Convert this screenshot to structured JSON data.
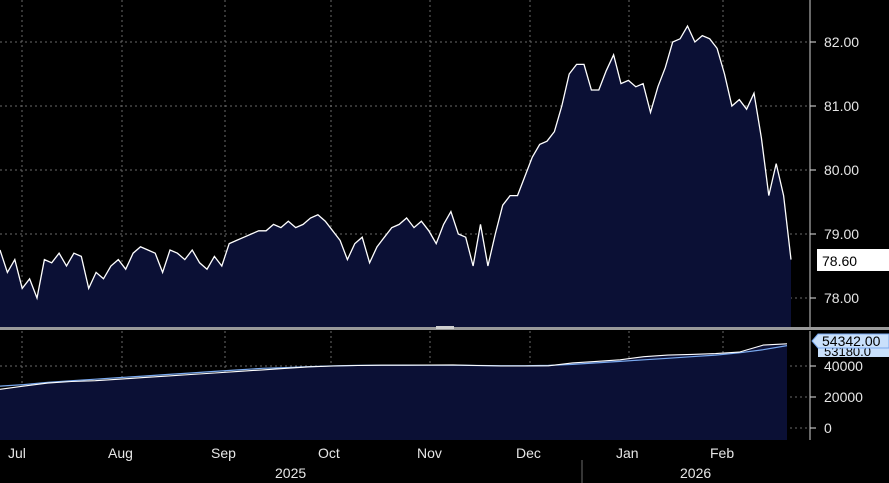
{
  "chart_data": [
    {
      "type": "area",
      "panel": "price",
      "y_ticks": [
        "82.00",
        "81.00",
        "80.00",
        "79.00",
        "78.00"
      ],
      "ylim": [
        77.55,
        82.3
      ],
      "last_value_label": "78.60",
      "colors": {
        "line": "#ffffff",
        "fill": "#0b1035",
        "background": "#000000",
        "label_bg": "#ffffff",
        "label_text": "#000000"
      },
      "grid": true,
      "series": [
        {
          "values": [
            78.75,
            78.4,
            78.6,
            78.15,
            78.3,
            78.0,
            78.6,
            78.55,
            78.7,
            78.5,
            78.7,
            78.65,
            78.15,
            78.4,
            78.3,
            78.5,
            78.6,
            78.45,
            78.7,
            78.8,
            78.75,
            78.7,
            78.4,
            78.75,
            78.7,
            78.6,
            78.75,
            78.55,
            78.45,
            78.65,
            78.5,
            78.85,
            78.9,
            78.95,
            79.0,
            79.05,
            79.05,
            79.15,
            79.1,
            79.2,
            79.1,
            79.15,
            79.25,
            79.3,
            79.2,
            79.05,
            78.9,
            78.6,
            78.85,
            78.95,
            78.55,
            78.8,
            78.95,
            79.1,
            79.15,
            79.25,
            79.1,
            79.2,
            79.05,
            78.85,
            79.15,
            79.35,
            79.0,
            78.95,
            78.5,
            79.15,
            78.5,
            79.0,
            79.45,
            79.6,
            79.6,
            79.9,
            80.2,
            80.4,
            80.45,
            80.6,
            81.0,
            81.5,
            81.65,
            81.65,
            81.25,
            81.25,
            81.55,
            81.8,
            81.35,
            81.4,
            81.3,
            81.35,
            80.9,
            81.3,
            81.6,
            82.0,
            82.05,
            82.25,
            82.0,
            82.1,
            82.05,
            81.9,
            81.5,
            81.0,
            81.1,
            80.95,
            81.2,
            80.5,
            79.6,
            80.1,
            79.6,
            78.6
          ]
        }
      ]
    },
    {
      "type": "area",
      "panel": "volume",
      "y_ticks": [
        "40000",
        "20000",
        "0"
      ],
      "ylim": [
        -2000,
        57000
      ],
      "last_value_label": "54342.00",
      "hidden_label_fragment": "53180.0",
      "colors": {
        "fill": "#0b1035",
        "line1": "#ffffff",
        "line2": "#79a8ee",
        "label_bg": "#c9e0fb",
        "label_text": "#000000",
        "accent": "#79a8ee"
      },
      "grid": true,
      "series": [
        {
          "values": [
            25000,
            27000,
            29000,
            30000,
            30500,
            31500,
            32500,
            33500,
            34500,
            35500,
            36500,
            37500,
            38500,
            39500,
            40000,
            40300,
            40500,
            40500,
            40600,
            40700,
            40300,
            40000,
            40000,
            40100,
            42000,
            43000,
            44000,
            46000,
            47000,
            47500,
            48000,
            49000,
            53500,
            54342
          ]
        },
        {
          "values": [
            27000,
            28000,
            29500,
            30500,
            31500,
            32500,
            33500,
            34500,
            35500,
            36500,
            37500,
            38500,
            39000,
            39600,
            40100,
            40400,
            40500,
            40600,
            40500,
            40500,
            40300,
            40200,
            40200,
            40400,
            41000,
            42000,
            43000,
            44000,
            45000,
            46000,
            47000,
            48500,
            50500,
            53180
          ]
        }
      ]
    }
  ],
  "x_axis": {
    "months": [
      "Jul",
      "Aug",
      "Sep",
      "Oct",
      "Nov",
      "Dec",
      "Jan",
      "Feb"
    ],
    "years": [
      "2025",
      "2026"
    ]
  }
}
